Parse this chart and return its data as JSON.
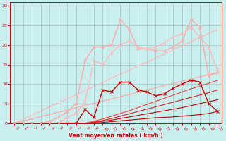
{
  "background_color": "#c8eeee",
  "grid_color": "#b0c8c8",
  "xlabel": "Vent moyen/en rafales ( km/h )",
  "xlabel_color": "#cc0000",
  "tick_color": "#cc0000",
  "xlim": [
    -0.5,
    23.5
  ],
  "ylim": [
    0,
    31
  ],
  "xticks": [
    0,
    1,
    2,
    3,
    4,
    5,
    6,
    7,
    8,
    9,
    10,
    11,
    12,
    13,
    14,
    15,
    16,
    17,
    18,
    19,
    20,
    21,
    22,
    23
  ],
  "yticks": [
    0,
    5,
    10,
    15,
    20,
    25,
    30
  ],
  "lines": [
    {
      "x": [
        0,
        1,
        2,
        3,
        4,
        5,
        6,
        7,
        8,
        9,
        10,
        11,
        12,
        13,
        14,
        15,
        16,
        17,
        18,
        19,
        20,
        21,
        22,
        23
      ],
      "y": [
        0,
        0,
        0,
        0,
        0,
        0,
        0,
        0,
        0,
        0,
        0.2,
        0.4,
        0.6,
        0.8,
        1.0,
        1.2,
        1.4,
        1.5,
        1.6,
        1.8,
        2.0,
        2.2,
        2.5,
        3.0
      ],
      "color": "#bb0000",
      "lw": 0.8,
      "marker": null,
      "ms": 0
    },
    {
      "x": [
        0,
        1,
        2,
        3,
        4,
        5,
        6,
        7,
        8,
        9,
        10,
        11,
        12,
        13,
        14,
        15,
        16,
        17,
        18,
        19,
        20,
        21,
        22,
        23
      ],
      "y": [
        0,
        0,
        0,
        0,
        0,
        0,
        0,
        0,
        0,
        0.2,
        0.5,
        0.8,
        1.2,
        1.6,
        2.0,
        2.4,
        2.8,
        3.2,
        3.6,
        4.0,
        4.5,
        5.0,
        5.5,
        6.0
      ],
      "color": "#cc0000",
      "lw": 0.8,
      "marker": null,
      "ms": 0
    },
    {
      "x": [
        0,
        1,
        2,
        3,
        4,
        5,
        6,
        7,
        8,
        9,
        10,
        11,
        12,
        13,
        14,
        15,
        16,
        17,
        18,
        19,
        20,
        21,
        22,
        23
      ],
      "y": [
        0,
        0,
        0,
        0,
        0,
        0,
        0,
        0,
        0,
        0.3,
        0.7,
        1.2,
        1.8,
        2.4,
        3.0,
        3.6,
        4.2,
        4.8,
        5.4,
        6.0,
        6.6,
        7.2,
        7.8,
        8.5
      ],
      "color": "#dd2222",
      "lw": 0.8,
      "marker": null,
      "ms": 0
    },
    {
      "x": [
        0,
        1,
        2,
        3,
        4,
        5,
        6,
        7,
        8,
        9,
        10,
        11,
        12,
        13,
        14,
        15,
        16,
        17,
        18,
        19,
        20,
        21,
        22,
        23
      ],
      "y": [
        0,
        0,
        0,
        0,
        0,
        0,
        0,
        0,
        0,
        0.5,
        1.1,
        1.8,
        2.5,
        3.2,
        4.0,
        4.8,
        5.6,
        6.4,
        7.2,
        8.0,
        8.8,
        9.5,
        10.2,
        11.0
      ],
      "color": "#ee4444",
      "lw": 0.8,
      "marker": null,
      "ms": 0
    },
    {
      "x": [
        0,
        23
      ],
      "y": [
        0,
        13
      ],
      "color": "#ffaaaa",
      "lw": 0.9,
      "marker": null,
      "ms": 0
    },
    {
      "x": [
        0,
        23
      ],
      "y": [
        0,
        24
      ],
      "color": "#ffbbbb",
      "lw": 0.9,
      "marker": null,
      "ms": 0
    },
    {
      "x": [
        0,
        1,
        2,
        3,
        4,
        5,
        6,
        7,
        8,
        9,
        10,
        11,
        12,
        13,
        14,
        15,
        16,
        17,
        18,
        19,
        20,
        21,
        22,
        23
      ],
      "y": [
        0,
        0,
        0,
        0,
        0,
        0,
        0,
        0,
        3.5,
        1.5,
        8.5,
        8.0,
        10.5,
        10.5,
        8.5,
        8.0,
        7.0,
        7.5,
        9.0,
        10.0,
        11.0,
        10.5,
        5.0,
        3.0
      ],
      "color": "#cc0000",
      "lw": 1.0,
      "marker": "x",
      "ms": 3
    },
    {
      "x": [
        0,
        1,
        2,
        3,
        4,
        5,
        6,
        7,
        8,
        9,
        10,
        11,
        12,
        13,
        14,
        15,
        16,
        17,
        18,
        19,
        20,
        21,
        22,
        23
      ],
      "y": [
        0,
        0,
        0,
        0,
        0.5,
        1.5,
        3.0,
        5.0,
        16.0,
        19.5,
        19.5,
        20.0,
        26.5,
        24.0,
        19.0,
        19.0,
        18.5,
        18.5,
        19.5,
        21.0,
        26.5,
        24.5,
        12.0,
        13.0
      ],
      "color": "#ffaaaa",
      "lw": 1.0,
      "marker": "x",
      "ms": 3
    },
    {
      "x": [
        0,
        1,
        2,
        3,
        4,
        5,
        6,
        7,
        8,
        9,
        10,
        11,
        12,
        13,
        14,
        15,
        16,
        17,
        18,
        19,
        20,
        21,
        22,
        23
      ],
      "y": [
        0,
        0,
        0,
        0,
        0,
        0,
        1.5,
        2.5,
        5.5,
        16.0,
        15.0,
        18.0,
        20.0,
        21.0,
        19.5,
        19.0,
        19.5,
        20.5,
        22.0,
        23.0,
        24.5,
        22.0,
        19.5,
        13.5
      ],
      "color": "#ffbbbb",
      "lw": 1.0,
      "marker": "x",
      "ms": 3
    }
  ]
}
